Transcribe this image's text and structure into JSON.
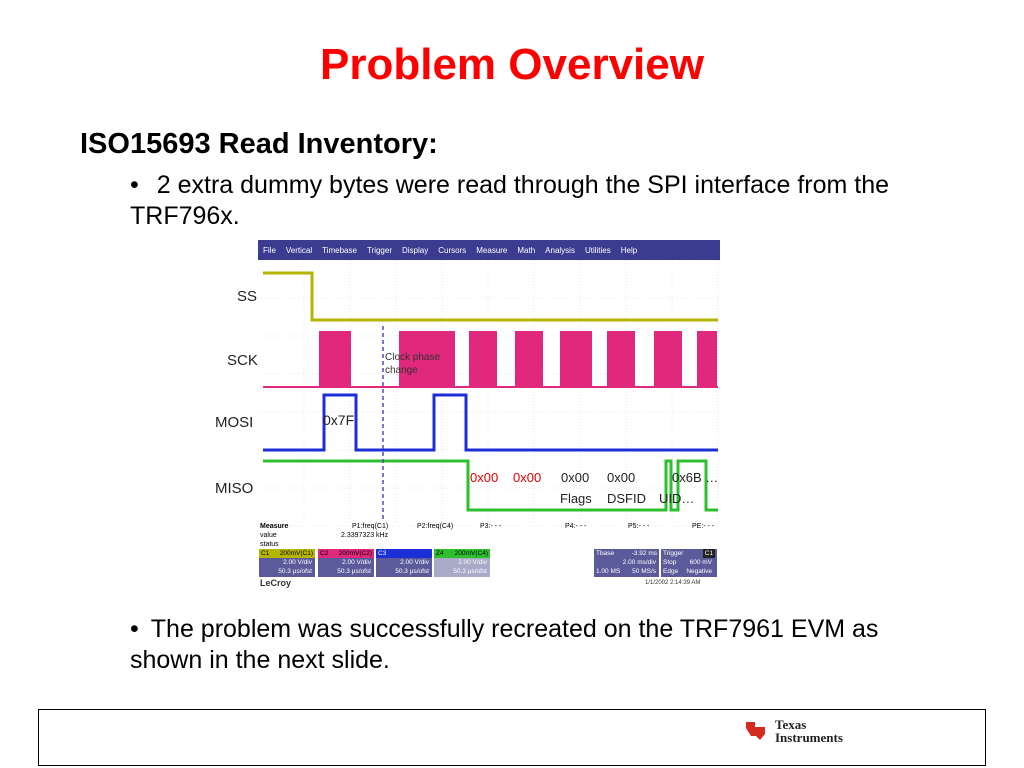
{
  "slide": {
    "title": "Problem Overview",
    "heading": "ISO15693 Read Inventory:",
    "bullets": [
      "2 extra dummy bytes were read through the SPI interface from the TRF796x.",
      "The problem was successfully recreated on the TRF7961 EVM as shown in the next slide."
    ]
  },
  "scope": {
    "menu": [
      "File",
      "Vertical",
      "Timebase",
      "Trigger",
      "Display",
      "Cursors",
      "Measure",
      "Math",
      "Analysis",
      "Utilities",
      "Help"
    ],
    "signals": [
      "SS",
      "SCK",
      "MOSI",
      "MISO"
    ],
    "annotations": {
      "clock_phase": [
        "Clock phase",
        "change"
      ],
      "mosi_byte": "0x7F",
      "miso_red": [
        "0x00",
        "0x00"
      ],
      "miso_black": [
        "0x00",
        "0x00",
        "0x6B …"
      ],
      "miso_labels": [
        "Flags",
        "DSFID",
        "UID…"
      ]
    },
    "measure": {
      "label": "Measure",
      "value_label": "value",
      "status_label": "status",
      "p1": "P1:freq(C1)",
      "p1_value": "2.3397323 kHz",
      "p2": "P2:freq(C4)",
      "p3": "P3:- - -",
      "p4": "P4:- - -",
      "p5": "P5:- - -",
      "pe": "PE:- - -"
    },
    "channels": [
      {
        "name": "C1",
        "hdr": "200mV(C1)",
        "l1": "2.00 V/div",
        "l2": "50.3 µs/ofst",
        "color": "#b5b500"
      },
      {
        "name": "C2",
        "hdr": "200mV(C2)",
        "l1": "2.00 V/div",
        "l2": "50.3 µs/ofst",
        "color": "#e0287d"
      },
      {
        "name": "C3",
        "hdr": "",
        "l1": "2.00 V/div",
        "l2": "50.3 µs/ofst",
        "color": "#1c2fd6"
      },
      {
        "name": "Z4",
        "hdr": "200mV(C4)",
        "l1": "2.00 V/div",
        "l2": "50.3 µs/ofst",
        "color": "#2dbf2d"
      }
    ],
    "tbase": {
      "label": "Tbase",
      "value": "-3.92 ms",
      "l1": "2.00 ms/div",
      "l2a": "1.00 MS",
      "l2b": "50 MS/s"
    },
    "trigger": {
      "label": "Trigger",
      "ch": "C1",
      "l1a": "Stop",
      "l1b": "600 mV",
      "l2a": "Edge",
      "l2b": "Negative"
    },
    "brand": "LeCroy",
    "datetime": "1/1/2002 2:14:39 AM"
  },
  "footer": {
    "logo_line1": "Texas",
    "logo_line2": "Instruments"
  },
  "colors": {
    "title": "#ff0000",
    "ss": "#b5b500",
    "sck": "#e0287d",
    "mosi": "#1c2fd6",
    "miso": "#2dbf2d",
    "cursor": "#6040c0"
  }
}
